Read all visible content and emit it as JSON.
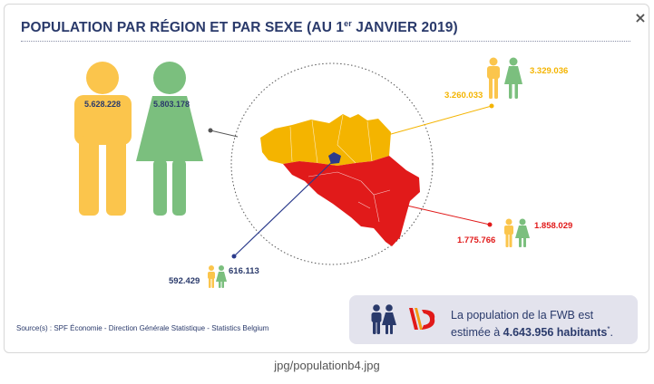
{
  "title_main": "POPULATION PAR RÉGION ET PAR SEXE (AU 1",
  "title_sup": "er",
  "title_end": " JANVIER 2019)",
  "close_label": "×",
  "belgium": {
    "men": "5.628.228",
    "women": "5.803.178"
  },
  "flanders": {
    "men": "3.260.033",
    "women": "3.329.036"
  },
  "wallonia": {
    "men": "1.775.766",
    "women": "1.858.029"
  },
  "brussels": {
    "men": "592.429",
    "women": "616.113"
  },
  "source": "Source(s) : SPF Économie - Direction Générale Statistique - Statistics Belgium",
  "fwb": {
    "line1": "La population de la FWB est",
    "line2_prefix": "estimée à ",
    "line2_bold": "4.643.956 habitants",
    "line2_sup": "*",
    "line2_suffix": "."
  },
  "caption": "jpg/populationb4.jpg",
  "colors": {
    "navy": "#2a3a6b",
    "men": "#fbc54c",
    "women": "#7bbf7e",
    "flanders": "#f4b400",
    "wallonia": "#e11a1a",
    "brussels": "#2b3b8c"
  },
  "icons": [
    "man-icon",
    "woman-icon",
    "fwb-logo"
  ]
}
